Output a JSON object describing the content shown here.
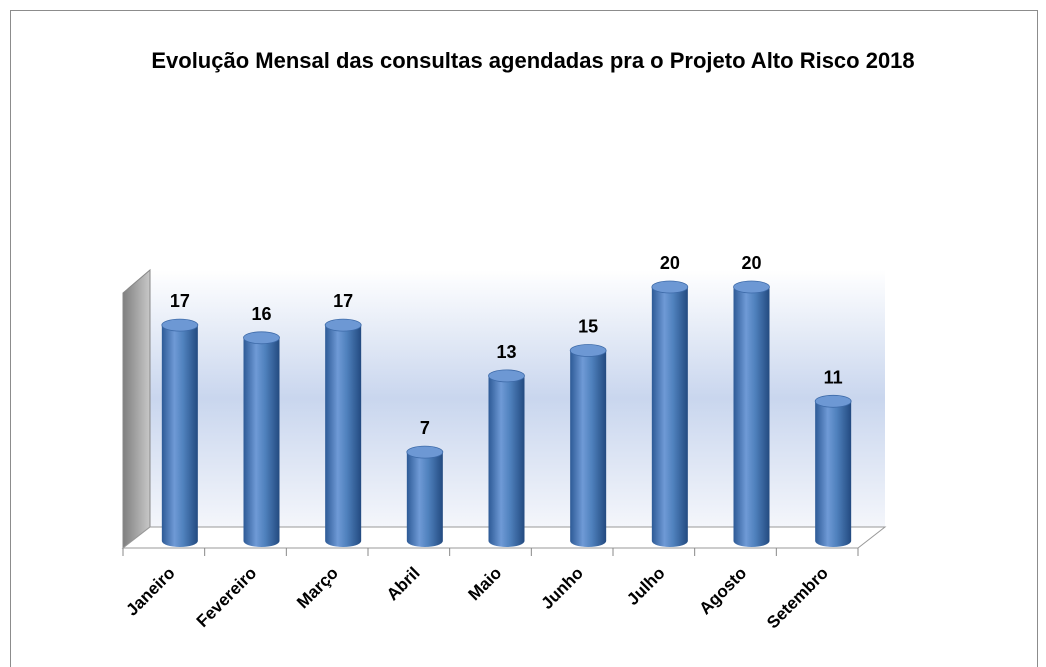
{
  "chart_data": {
    "type": "bar",
    "title": "Evolução Mensal das consultas agendadas pra o Projeto Alto Risco 2018",
    "categories": [
      "Janeiro",
      "Fevereiro",
      "Março",
      "Abril",
      "Maio",
      "Junho",
      "Julho",
      "Agosto",
      "Setembro"
    ],
    "values": [
      17,
      16,
      17,
      7,
      13,
      15,
      20,
      20,
      11
    ],
    "color": "#4f81bd"
  }
}
